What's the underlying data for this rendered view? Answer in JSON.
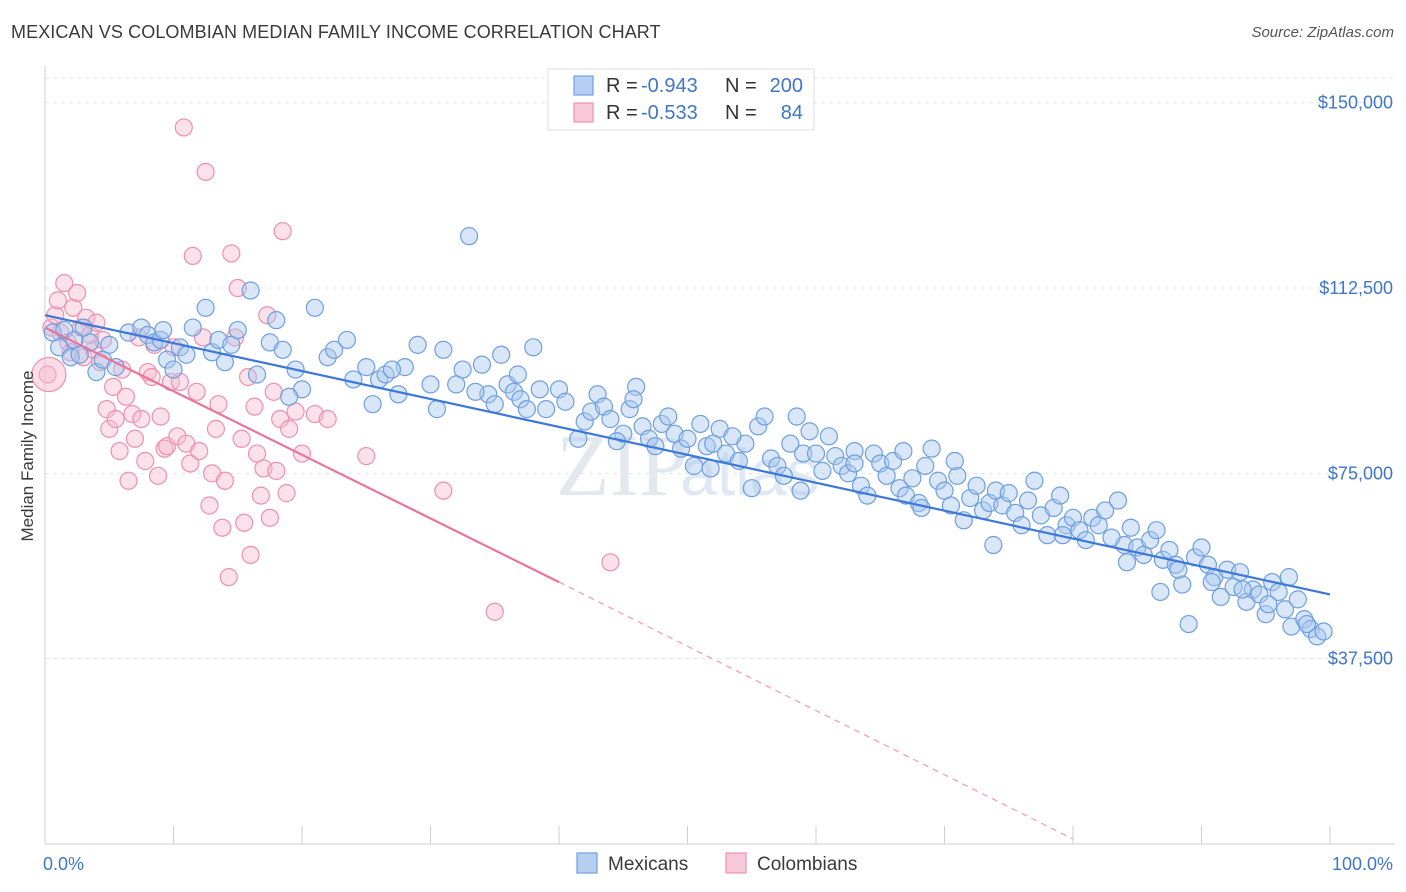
{
  "header": {
    "title": "MEXICAN VS COLOMBIAN MEDIAN FAMILY INCOME CORRELATION CHART",
    "source": "Source: ZipAtlas.com"
  },
  "watermark": {
    "zip": "ZIP",
    "atlas": "atlas"
  },
  "legend": {
    "rows": [
      {
        "r_label": "R =",
        "r_value": "-0.943",
        "n_label": "N =",
        "n_value": "200",
        "color": "#6fa0e0"
      },
      {
        "r_label": "R =",
        "r_value": "-0.533",
        "n_label": "N =",
        "n_value": "84",
        "color": "#f08fb0"
      }
    ]
  },
  "bottom_legend": {
    "items": [
      {
        "label": "Mexicans",
        "color": "#6fa0e0"
      },
      {
        "label": "Colombians",
        "color": "#f08fb0"
      }
    ]
  },
  "colors": {
    "blue": "#3c78d8",
    "blue_fill": "#aecbf0",
    "pink": "#e8739c",
    "pink_fill": "#f5b8cc",
    "label_blue": "#3f76c9"
  },
  "chart_data": {
    "type": "scatter",
    "xlabel": "",
    "ylabel": "Median Family Income",
    "xlim": [
      0,
      100
    ],
    "ylim": [
      0,
      155000
    ],
    "x_tick_labels": [
      "0.0%",
      "100.0%"
    ],
    "y_ticks": [
      37500,
      75000,
      112500,
      150000
    ],
    "y_tick_labels": [
      "$37,500",
      "$75,000",
      "$112,500",
      "$150,000"
    ],
    "grid": true,
    "legend_position": "top-center",
    "series": [
      {
        "name": "Mexicans",
        "r": -0.943,
        "n": 200,
        "trend": {
          "x": [
            0,
            100
          ],
          "y": [
            107000,
            50500
          ]
        },
        "points": [
          [
            0.6,
            103500
          ],
          [
            1.1,
            100500
          ],
          [
            1.5,
            104000
          ],
          [
            2.0,
            98500
          ],
          [
            2.3,
            102000
          ],
          [
            3.5,
            101500
          ],
          [
            4.0,
            95500
          ],
          [
            4.5,
            98000
          ],
          [
            5.0,
            101000
          ],
          [
            6.5,
            103500
          ],
          [
            7.5,
            104500
          ],
          [
            8.0,
            103000
          ],
          [
            8.5,
            101500
          ],
          [
            9.0,
            102000
          ],
          [
            9.5,
            98000
          ],
          [
            10.0,
            96000
          ],
          [
            10.5,
            100500
          ],
          [
            11.5,
            104500
          ],
          [
            12.5,
            108500
          ],
          [
            13.0,
            99500
          ],
          [
            13.5,
            102000
          ],
          [
            14.5,
            101000
          ],
          [
            15.0,
            104000
          ],
          [
            16.0,
            112000
          ],
          [
            16.5,
            95000
          ],
          [
            17.5,
            101500
          ],
          [
            18.0,
            106000
          ],
          [
            18.5,
            100000
          ],
          [
            19.5,
            96000
          ],
          [
            20.0,
            92000
          ],
          [
            21.0,
            108500
          ],
          [
            22.0,
            98500
          ],
          [
            22.5,
            100000
          ],
          [
            23.5,
            102000
          ],
          [
            24.0,
            94000
          ],
          [
            25.0,
            96500
          ],
          [
            26.0,
            94000
          ],
          [
            26.5,
            95000
          ],
          [
            27.5,
            91000
          ],
          [
            28.0,
            96500
          ],
          [
            29.0,
            101000
          ],
          [
            30.0,
            93000
          ],
          [
            30.5,
            88000
          ],
          [
            31.0,
            100000
          ],
          [
            32.0,
            93000
          ],
          [
            32.5,
            96000
          ],
          [
            33.0,
            123000
          ],
          [
            34.0,
            97000
          ],
          [
            34.5,
            91000
          ],
          [
            35.0,
            89000
          ],
          [
            35.5,
            99000
          ],
          [
            36.0,
            93000
          ],
          [
            36.5,
            91500
          ],
          [
            37.0,
            90000
          ],
          [
            37.5,
            88000
          ],
          [
            38.0,
            100500
          ],
          [
            38.5,
            92000
          ],
          [
            39.0,
            88000
          ],
          [
            40.0,
            92000
          ],
          [
            40.5,
            89500
          ],
          [
            41.5,
            82000
          ],
          [
            42.0,
            85500
          ],
          [
            42.5,
            87500
          ],
          [
            43.0,
            91000
          ],
          [
            43.5,
            88500
          ],
          [
            44.0,
            86000
          ],
          [
            45.0,
            83000
          ],
          [
            45.5,
            88000
          ],
          [
            46.0,
            92500
          ],
          [
            46.5,
            84500
          ],
          [
            47.0,
            82000
          ],
          [
            47.5,
            80500
          ],
          [
            48.0,
            85000
          ],
          [
            48.5,
            86500
          ],
          [
            49.0,
            83000
          ],
          [
            49.5,
            80000
          ],
          [
            50.0,
            82000
          ],
          [
            50.5,
            76500
          ],
          [
            51.0,
            85000
          ],
          [
            51.5,
            80500
          ],
          [
            52.0,
            81000
          ],
          [
            52.5,
            84000
          ],
          [
            53.0,
            79000
          ],
          [
            54.0,
            77500
          ],
          [
            54.5,
            81000
          ],
          [
            55.0,
            72000
          ],
          [
            55.5,
            84500
          ],
          [
            56.0,
            86500
          ],
          [
            56.5,
            78000
          ],
          [
            57.0,
            76500
          ],
          [
            57.5,
            74500
          ],
          [
            58.0,
            81000
          ],
          [
            58.5,
            86500
          ],
          [
            59.0,
            79000
          ],
          [
            59.5,
            83500
          ],
          [
            60.0,
            79000
          ],
          [
            60.5,
            75500
          ],
          [
            61.0,
            82500
          ],
          [
            61.5,
            78500
          ],
          [
            62.0,
            76500
          ],
          [
            62.5,
            75000
          ],
          [
            63.0,
            79500
          ],
          [
            63.5,
            72500
          ],
          [
            64.0,
            70500
          ],
          [
            64.5,
            79000
          ],
          [
            65.0,
            77000
          ],
          [
            65.5,
            74500
          ],
          [
            66.0,
            77500
          ],
          [
            66.5,
            72000
          ],
          [
            67.0,
            70500
          ],
          [
            67.5,
            74000
          ],
          [
            68.0,
            69000
          ],
          [
            68.5,
            76500
          ],
          [
            69.0,
            80000
          ],
          [
            69.5,
            73500
          ],
          [
            70.0,
            71500
          ],
          [
            70.5,
            68500
          ],
          [
            71.0,
            74500
          ],
          [
            71.5,
            65500
          ],
          [
            72.0,
            70000
          ],
          [
            72.5,
            72500
          ],
          [
            73.0,
            67500
          ],
          [
            73.5,
            69000
          ],
          [
            74.0,
            71500
          ],
          [
            74.5,
            68500
          ],
          [
            75.0,
            71000
          ],
          [
            75.5,
            67000
          ],
          [
            76.0,
            64500
          ],
          [
            76.5,
            69500
          ],
          [
            77.0,
            73500
          ],
          [
            77.5,
            66500
          ],
          [
            78.0,
            62500
          ],
          [
            78.5,
            68000
          ],
          [
            79.0,
            70500
          ],
          [
            79.5,
            64500
          ],
          [
            80.0,
            66000
          ],
          [
            80.5,
            63500
          ],
          [
            81.0,
            61500
          ],
          [
            81.5,
            66000
          ],
          [
            82.0,
            64500
          ],
          [
            82.5,
            67500
          ],
          [
            83.0,
            62000
          ],
          [
            83.5,
            69500
          ],
          [
            84.0,
            60500
          ],
          [
            84.5,
            64000
          ],
          [
            85.0,
            60000
          ],
          [
            85.5,
            58500
          ],
          [
            86.0,
            61500
          ],
          [
            86.5,
            63500
          ],
          [
            87.0,
            57500
          ],
          [
            87.5,
            59500
          ],
          [
            88.0,
            56500
          ],
          [
            88.5,
            52500
          ],
          [
            89.0,
            44500
          ],
          [
            89.5,
            58000
          ],
          [
            90.0,
            60000
          ],
          [
            90.5,
            56500
          ],
          [
            91.0,
            54000
          ],
          [
            91.5,
            50000
          ],
          [
            92.0,
            55500
          ],
          [
            92.5,
            52000
          ],
          [
            93.0,
            55000
          ],
          [
            93.5,
            49000
          ],
          [
            94.0,
            51500
          ],
          [
            94.5,
            50500
          ],
          [
            95.0,
            46500
          ],
          [
            95.5,
            53000
          ],
          [
            96.0,
            51000
          ],
          [
            96.5,
            47500
          ],
          [
            97.0,
            44000
          ],
          [
            97.5,
            49500
          ],
          [
            98.0,
            45500
          ],
          [
            98.5,
            43500
          ],
          [
            99.0,
            42000
          ],
          [
            99.5,
            43000
          ],
          [
            2.7,
            99000
          ],
          [
            5.5,
            96500
          ],
          [
            9.2,
            104000
          ],
          [
            14.0,
            97500
          ],
          [
            25.5,
            89000
          ],
          [
            33.5,
            91500
          ],
          [
            44.5,
            81500
          ],
          [
            53.5,
            82500
          ],
          [
            63.0,
            77000
          ],
          [
            68.2,
            68000
          ],
          [
            73.8,
            60500
          ],
          [
            79.2,
            62500
          ],
          [
            84.2,
            57000
          ],
          [
            86.8,
            51000
          ],
          [
            88.2,
            55500
          ],
          [
            90.8,
            53000
          ],
          [
            93.2,
            51500
          ],
          [
            95.2,
            48500
          ],
          [
            96.8,
            54000
          ],
          [
            98.2,
            44500
          ],
          [
            3.0,
            104500
          ],
          [
            11.0,
            99000
          ],
          [
            19.0,
            90500
          ],
          [
            27.0,
            96000
          ],
          [
            36.8,
            95000
          ],
          [
            45.8,
            90000
          ],
          [
            51.8,
            76000
          ],
          [
            58.8,
            71500
          ],
          [
            66.8,
            79500
          ],
          [
            70.8,
            77500
          ]
        ]
      },
      {
        "name": "Colombians",
        "r": -0.533,
        "n": 84,
        "trend": {
          "x": [
            0,
            40
          ],
          "y": [
            104500,
            53000
          ]
        },
        "trend_dashed": {
          "x": [
            40,
            80
          ],
          "y": [
            53000,
            1000
          ]
        },
        "points": [
          [
            0.2,
            95000
          ],
          [
            0.5,
            104500
          ],
          [
            0.8,
            107000
          ],
          [
            1.0,
            110000
          ],
          [
            1.2,
            103500
          ],
          [
            1.5,
            113500
          ],
          [
            1.8,
            101500
          ],
          [
            2.0,
            99500
          ],
          [
            2.2,
            108500
          ],
          [
            2.5,
            111500
          ],
          [
            2.8,
            104500
          ],
          [
            3.0,
            98500
          ],
          [
            3.2,
            106500
          ],
          [
            3.5,
            103000
          ],
          [
            3.8,
            100000
          ],
          [
            4.0,
            105500
          ],
          [
            4.3,
            97500
          ],
          [
            4.5,
            102000
          ],
          [
            4.8,
            88000
          ],
          [
            5.0,
            84000
          ],
          [
            5.3,
            92500
          ],
          [
            5.5,
            86000
          ],
          [
            5.8,
            79500
          ],
          [
            6.0,
            96000
          ],
          [
            6.3,
            90500
          ],
          [
            6.5,
            73500
          ],
          [
            6.8,
            87000
          ],
          [
            7.0,
            82000
          ],
          [
            7.3,
            102500
          ],
          [
            7.5,
            86000
          ],
          [
            7.8,
            77500
          ],
          [
            8.0,
            95500
          ],
          [
            8.3,
            94500
          ],
          [
            8.5,
            101000
          ],
          [
            8.8,
            74500
          ],
          [
            9.0,
            86500
          ],
          [
            9.3,
            80000
          ],
          [
            9.5,
            80500
          ],
          [
            9.8,
            93500
          ],
          [
            10.0,
            100500
          ],
          [
            10.3,
            82500
          ],
          [
            10.5,
            93500
          ],
          [
            10.8,
            145000
          ],
          [
            11.0,
            81000
          ],
          [
            11.3,
            77000
          ],
          [
            11.5,
            119000
          ],
          [
            11.8,
            91500
          ],
          [
            12.0,
            79500
          ],
          [
            12.3,
            102500
          ],
          [
            12.5,
            136000
          ],
          [
            12.8,
            68500
          ],
          [
            13.0,
            75000
          ],
          [
            13.3,
            84000
          ],
          [
            13.5,
            89000
          ],
          [
            13.8,
            64000
          ],
          [
            14.0,
            73500
          ],
          [
            14.3,
            54000
          ],
          [
            14.5,
            119500
          ],
          [
            14.8,
            102500
          ],
          [
            15.0,
            112500
          ],
          [
            15.3,
            82000
          ],
          [
            15.5,
            65000
          ],
          [
            15.8,
            94500
          ],
          [
            16.0,
            58500
          ],
          [
            16.3,
            88500
          ],
          [
            16.5,
            79000
          ],
          [
            16.8,
            70500
          ],
          [
            17.0,
            76000
          ],
          [
            17.3,
            107000
          ],
          [
            17.5,
            66000
          ],
          [
            17.8,
            91500
          ],
          [
            18.0,
            75500
          ],
          [
            18.3,
            86000
          ],
          [
            18.5,
            124000
          ],
          [
            18.8,
            71000
          ],
          [
            19.0,
            84000
          ],
          [
            19.5,
            87500
          ],
          [
            20.0,
            79000
          ],
          [
            21.0,
            87000
          ],
          [
            22.0,
            86000
          ],
          [
            25.0,
            78500
          ],
          [
            31.0,
            71500
          ],
          [
            35.0,
            47000
          ],
          [
            44.0,
            57000
          ]
        ]
      }
    ]
  }
}
